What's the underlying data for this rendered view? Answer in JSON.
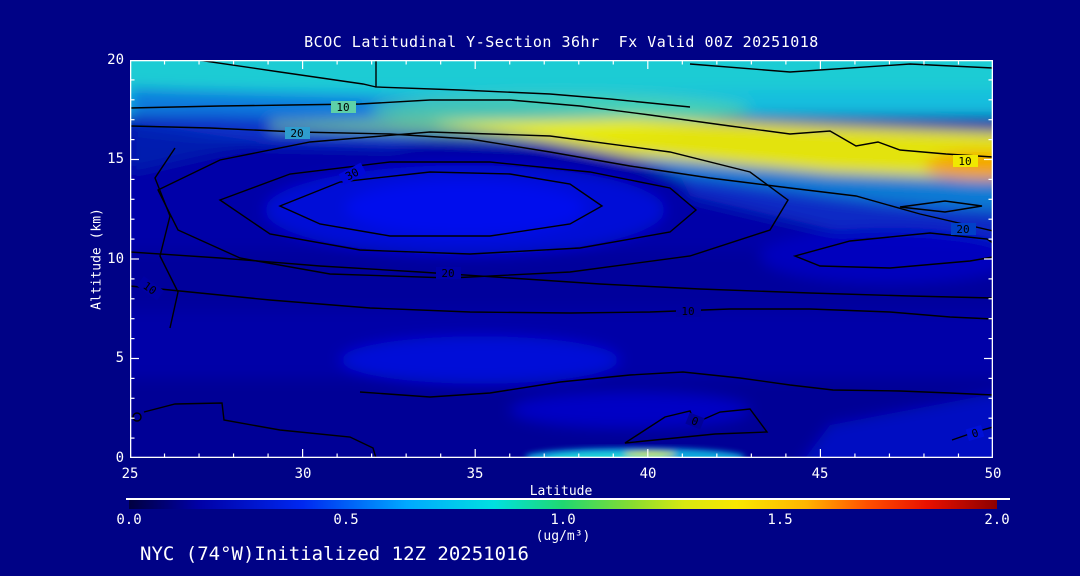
{
  "title": "BCOC Latitudinal Y-Section 36hr  Fx Valid 00Z 20251018",
  "caption": "NYC (74°W)Initialized 12Z 20251016",
  "axes": {
    "x": {
      "label": "Latitude",
      "range": [
        25,
        50
      ],
      "ticks": [
        "25",
        "30",
        "35",
        "40",
        "45",
        "50"
      ]
    },
    "y": {
      "label": "Altitude (km)",
      "range": [
        0,
        20
      ],
      "ticks": [
        "0",
        "5",
        "10",
        "15",
        "20"
      ]
    }
  },
  "colorbar": {
    "min": 0.0,
    "max": 2.0,
    "labels": [
      "0.0",
      "0.5",
      "1.0",
      "1.5",
      "2.0"
    ],
    "units": "(ug/m³)",
    "gradient": [
      "#000040",
      "#0028f0",
      "#00e0e0",
      "#20d870",
      "#f8e800",
      "#ff5000",
      "#8c0000"
    ]
  },
  "contour_labels": [
    "10",
    "20",
    "30",
    "20",
    "10",
    "10",
    "0",
    "0",
    "10",
    "20"
  ],
  "colors": {
    "page_background": "#000286",
    "axis": "#ffffff",
    "contour_line": "#000000",
    "fill_dark_blue": "#0000a8",
    "fill_bright_blue": "#0010f0",
    "fill_cyan": "#1eccd4",
    "fill_yellow": "#efef08",
    "fill_orange": "#f59e00"
  },
  "chart_data": {
    "type": "heatmap",
    "title": "BCOC Latitudinal Y-Section 36hr  Fx Valid 00Z 20251018",
    "xlabel": "Latitude",
    "ylabel": "Altitude (km)",
    "fill_units": "ug/m3",
    "fill_range": [
      0.0,
      2.0
    ],
    "x": [
      25,
      27.5,
      30,
      32.5,
      35,
      37.5,
      40,
      42.5,
      45,
      47.5,
      50
    ],
    "y": [
      0,
      2.5,
      5,
      7.5,
      10,
      12.5,
      15,
      17.5,
      20
    ],
    "values_note": "rows ordered bottom (0 km) to top (20 km), ug/m3 estimated from fill colors",
    "values": [
      [
        0.15,
        0.15,
        0.2,
        0.2,
        0.25,
        0.3,
        0.45,
        0.7,
        0.35,
        0.3,
        0.35
      ],
      [
        0.2,
        0.2,
        0.2,
        0.25,
        0.3,
        0.3,
        0.3,
        0.3,
        0.3,
        0.3,
        0.35
      ],
      [
        0.2,
        0.2,
        0.25,
        0.3,
        0.35,
        0.35,
        0.3,
        0.25,
        0.25,
        0.3,
        0.3
      ],
      [
        0.15,
        0.15,
        0.2,
        0.2,
        0.2,
        0.2,
        0.2,
        0.2,
        0.2,
        0.25,
        0.25
      ],
      [
        0.2,
        0.25,
        0.3,
        0.3,
        0.3,
        0.25,
        0.25,
        0.2,
        0.25,
        0.25,
        0.3
      ],
      [
        0.25,
        0.3,
        0.35,
        0.4,
        0.4,
        0.35,
        0.3,
        0.3,
        0.3,
        0.3,
        0.35
      ],
      [
        0.3,
        0.3,
        0.3,
        0.35,
        0.5,
        0.8,
        1.1,
        1.3,
        1.35,
        1.35,
        1.45
      ],
      [
        0.55,
        0.6,
        0.65,
        0.7,
        0.7,
        0.7,
        0.75,
        0.7,
        0.65,
        0.6,
        0.65
      ],
      [
        0.65,
        0.65,
        0.7,
        0.7,
        0.7,
        0.7,
        0.7,
        0.7,
        0.65,
        0.6,
        0.6
      ]
    ],
    "overlay_contours": {
      "labeled_levels": [
        0,
        10,
        20,
        30
      ],
      "note": "black contour overlay; nested closed maximum (>30) centered near 33.5N at 12.5 km; secondary closed 20-contours near 47N at 10 km; 0-contours near the surface around 40N and lower-right corner"
    },
    "legend_position": "bottom colorbar",
    "grid": false
  }
}
